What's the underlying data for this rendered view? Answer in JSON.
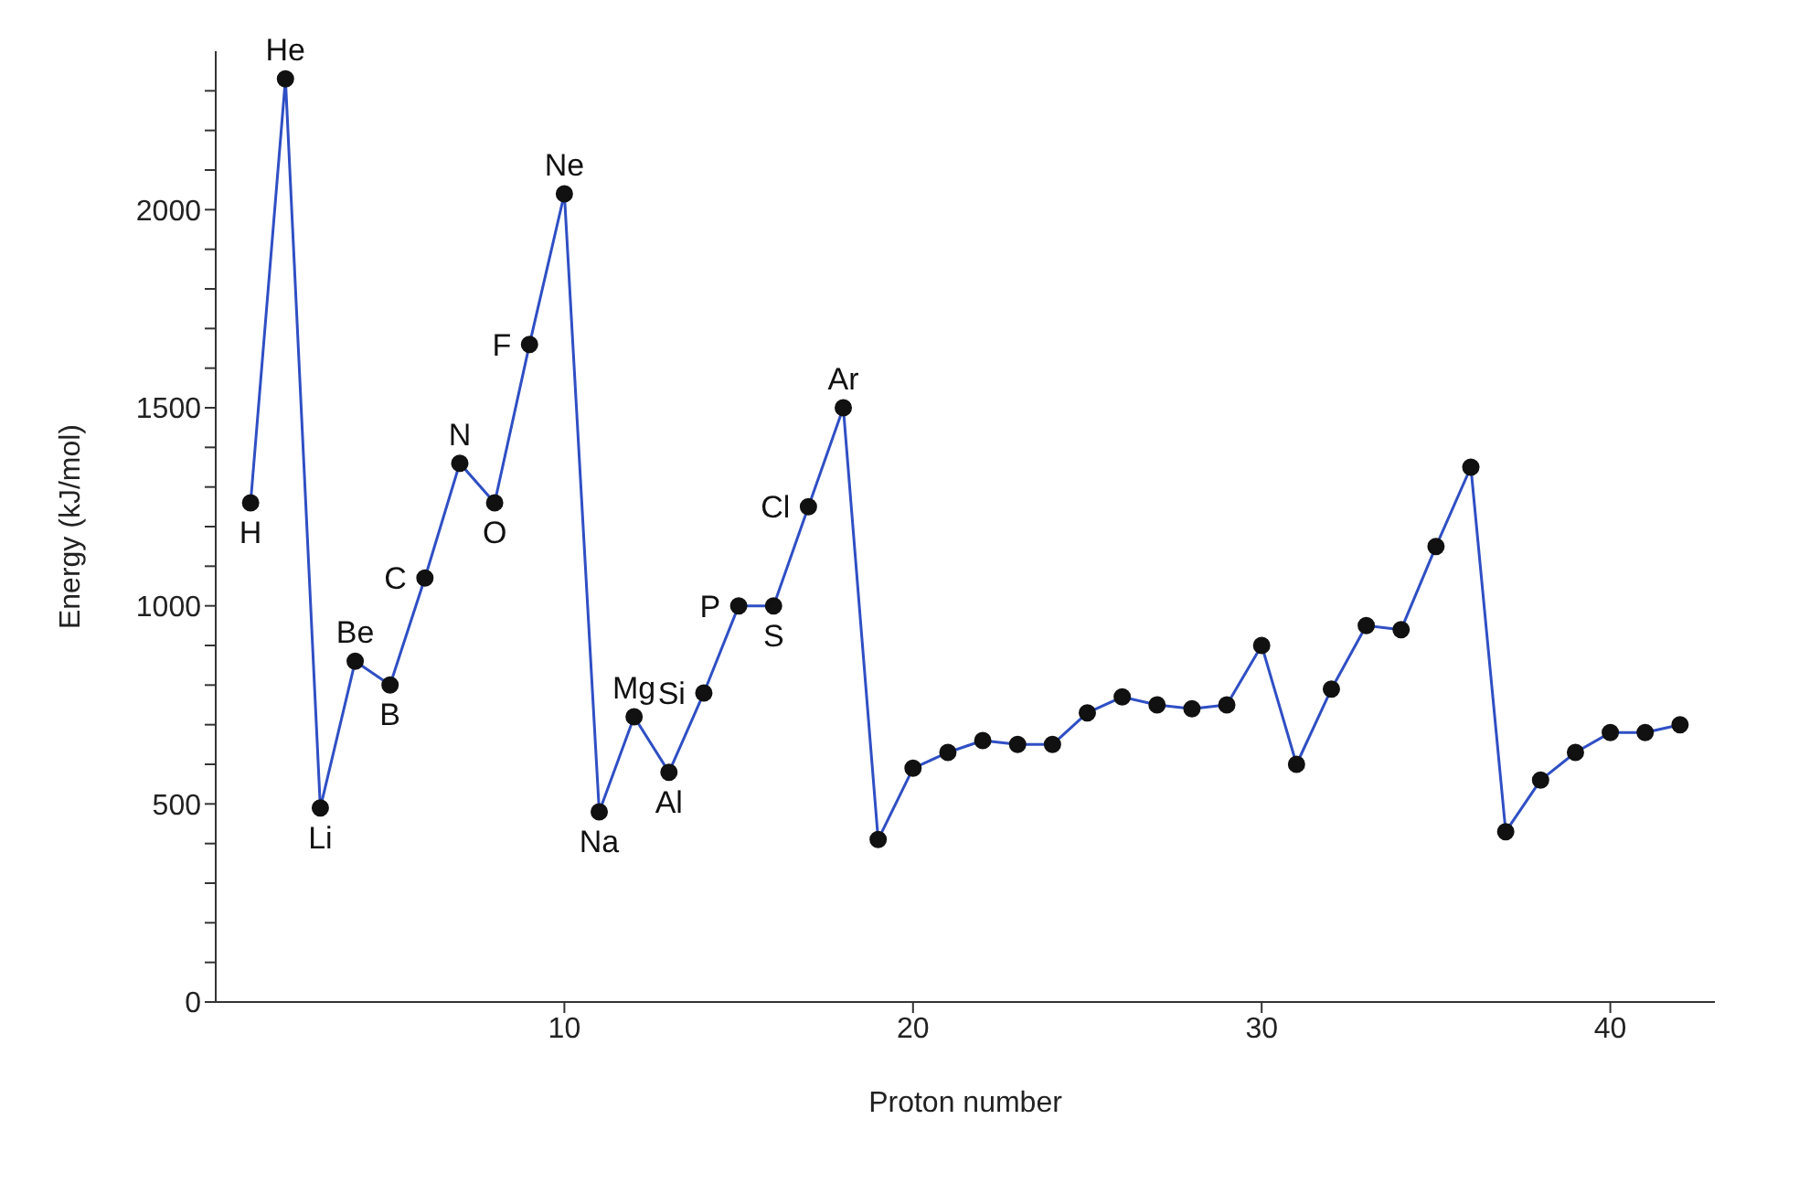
{
  "chart_data": {
    "type": "line",
    "xlabel": "Proton number",
    "ylabel": "Energy (kJ/mol)",
    "x": [
      1,
      2,
      3,
      4,
      5,
      6,
      7,
      8,
      9,
      10,
      11,
      12,
      13,
      14,
      15,
      16,
      17,
      18,
      19,
      20,
      21,
      22,
      23,
      24,
      25,
      26,
      27,
      28,
      29,
      30,
      31,
      32,
      33,
      34,
      35,
      36,
      37,
      38,
      39,
      40,
      41,
      42
    ],
    "series": [
      {
        "color": "#2f4fc4",
        "values": [
          1260,
          2330,
          490,
          860,
          800,
          1070,
          1360,
          1260,
          1660,
          2040,
          480,
          720,
          580,
          780,
          1000,
          1000,
          1250,
          1500,
          410,
          590,
          630,
          660,
          650,
          650,
          730,
          770,
          750,
          740,
          750,
          900,
          600,
          790,
          950,
          940,
          1150,
          1350,
          430,
          560,
          630,
          680,
          680,
          700
        ]
      }
    ],
    "marker": "circle",
    "line_style": "solid",
    "grid": false,
    "xlim": [
      0,
      43
    ],
    "xticks": [
      10,
      20,
      30,
      40
    ],
    "ylim": [
      0,
      2400
    ],
    "yticks": [
      0,
      {
        "value": 100,
        "label": null
      },
      {
        "value": 200,
        "label": null
      },
      {
        "value": 300,
        "label": null
      },
      {
        "value": 400,
        "label": null
      },
      500,
      {
        "value": 600,
        "label": null
      },
      {
        "value": 700,
        "label": null
      },
      {
        "value": 800,
        "label": null
      },
      {
        "value": 900,
        "label": null
      },
      1000,
      {
        "value": 1100,
        "label": null
      },
      {
        "value": 1200,
        "label": null
      },
      {
        "value": 1300,
        "label": null
      },
      {
        "value": 1400,
        "label": null
      },
      1500,
      {
        "value": 1600,
        "label": null
      },
      {
        "value": 1700,
        "label": null
      },
      {
        "value": 1800,
        "label": null
      },
      {
        "value": 1900,
        "label": null
      },
      2000,
      {
        "value": 2100,
        "label": null
      },
      {
        "value": 2200,
        "label": null
      },
      {
        "value": 2300,
        "label": null
      }
    ],
    "annotations": [
      {
        "text": "H",
        "x": 1,
        "y": 1260
      },
      {
        "text": "He",
        "x": 2,
        "y": 2330
      },
      {
        "text": "Li",
        "x": 3,
        "y": 490
      },
      {
        "text": "Be",
        "x": 4,
        "y": 860
      },
      {
        "text": "B",
        "x": 5,
        "y": 800
      },
      {
        "text": "C",
        "x": 6,
        "y": 1070
      },
      {
        "text": "N",
        "x": 7,
        "y": 1360
      },
      {
        "text": "O",
        "x": 8,
        "y": 1260
      },
      {
        "text": "F",
        "x": 9,
        "y": 1660
      },
      {
        "text": "Ne",
        "x": 10,
        "y": 2040
      },
      {
        "text": "Na",
        "x": 11,
        "y": 480
      },
      {
        "text": "Mg",
        "x": 12,
        "y": 720
      },
      {
        "text": "Al",
        "x": 13,
        "y": 580
      },
      {
        "text": "Si",
        "x": 14,
        "y": 780
      },
      {
        "text": "P",
        "x": 15,
        "y": 1000
      },
      {
        "text": "S",
        "x": 16,
        "y": 1000
      },
      {
        "text": "Cl",
        "x": 17,
        "y": 1250
      },
      {
        "text": "Ar",
        "x": 18,
        "y": 1500
      }
    ]
  }
}
